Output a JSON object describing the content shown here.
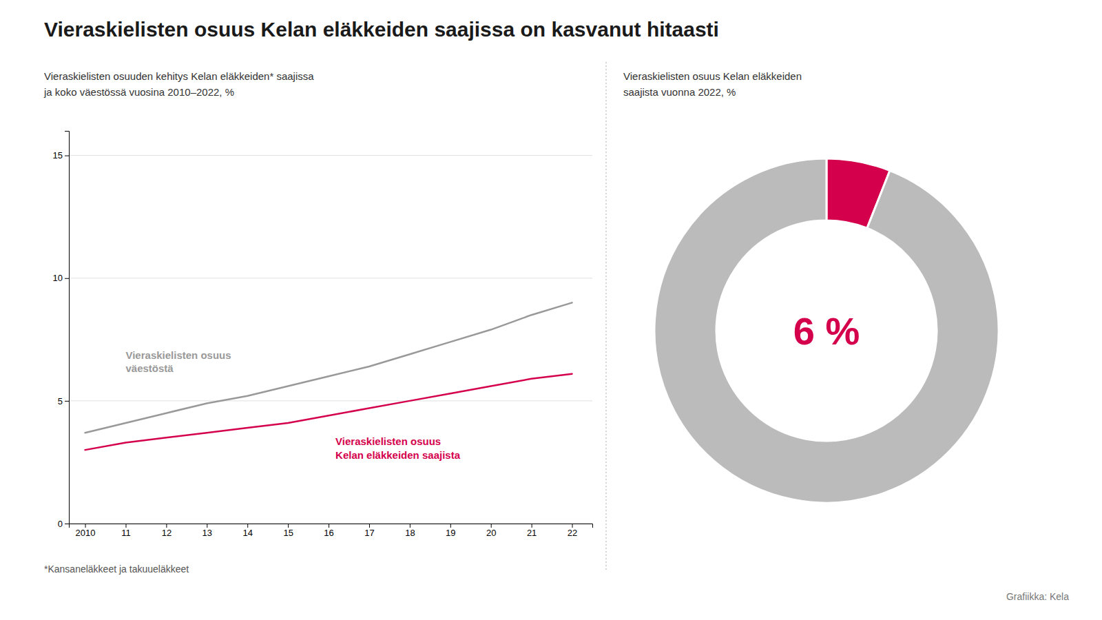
{
  "title": "Vieraskielisten osuus Kelan eläkkeiden saajissa on kasvanut hitaasti",
  "footnote": "*Kansaneläkkeet ja takuueläkkeet",
  "credit": "Grafiikka: Kela",
  "chart_data": [
    {
      "type": "line",
      "subtitle": "Vieraskielisten osuuden kehitys Kelan eläkkeiden* saajissa\nja koko väestössä vuosina 2010–2022, %",
      "x": [
        2010,
        2011,
        2012,
        2013,
        2014,
        2015,
        2016,
        2017,
        2018,
        2019,
        2020,
        2021,
        2022
      ],
      "series": [
        {
          "name": "Vieraskielisten osuus\nväestöstä",
          "color": "#999999",
          "values": [
            3.7,
            4.1,
            4.5,
            4.9,
            5.2,
            5.6,
            6.0,
            6.4,
            6.9,
            7.4,
            7.9,
            8.5,
            9.0
          ]
        },
        {
          "name": "Vieraskielisten osuus\nKelan eläkkeiden saajista",
          "color": "#d4004c",
          "values": [
            3.0,
            3.3,
            3.5,
            3.7,
            3.9,
            4.1,
            4.4,
            4.7,
            5.0,
            5.3,
            5.6,
            5.9,
            6.1
          ]
        }
      ],
      "xlim": [
        2009.6,
        2022.5
      ],
      "xticks": [
        2010,
        {
          "value": 2011,
          "label": "11"
        },
        {
          "value": 2012,
          "label": "12"
        },
        {
          "value": 2013,
          "label": "13"
        },
        {
          "value": 2014,
          "label": "14"
        },
        {
          "value": 2015,
          "label": "15"
        },
        {
          "value": 2016,
          "label": "16"
        },
        {
          "value": 2017,
          "label": "17"
        },
        {
          "value": 2018,
          "label": "18"
        },
        {
          "value": 2019,
          "label": "19"
        },
        {
          "value": 2020,
          "label": "20"
        },
        {
          "value": 2021,
          "label": "21"
        },
        {
          "value": 2022,
          "label": "22"
        }
      ],
      "ylim": [
        0,
        16
      ],
      "yticks": [
        0,
        5,
        10,
        15
      ],
      "grid": true
    },
    {
      "type": "donut",
      "subtitle": "Vieraskielisten osuus Kelan eläkkeiden\nsaajista vuonna 2022, %",
      "values": [
        6,
        94
      ],
      "value_labels": [
        "6 %",
        null
      ],
      "colors": [
        "#d4004c",
        "#bbbbbb"
      ]
    }
  ]
}
